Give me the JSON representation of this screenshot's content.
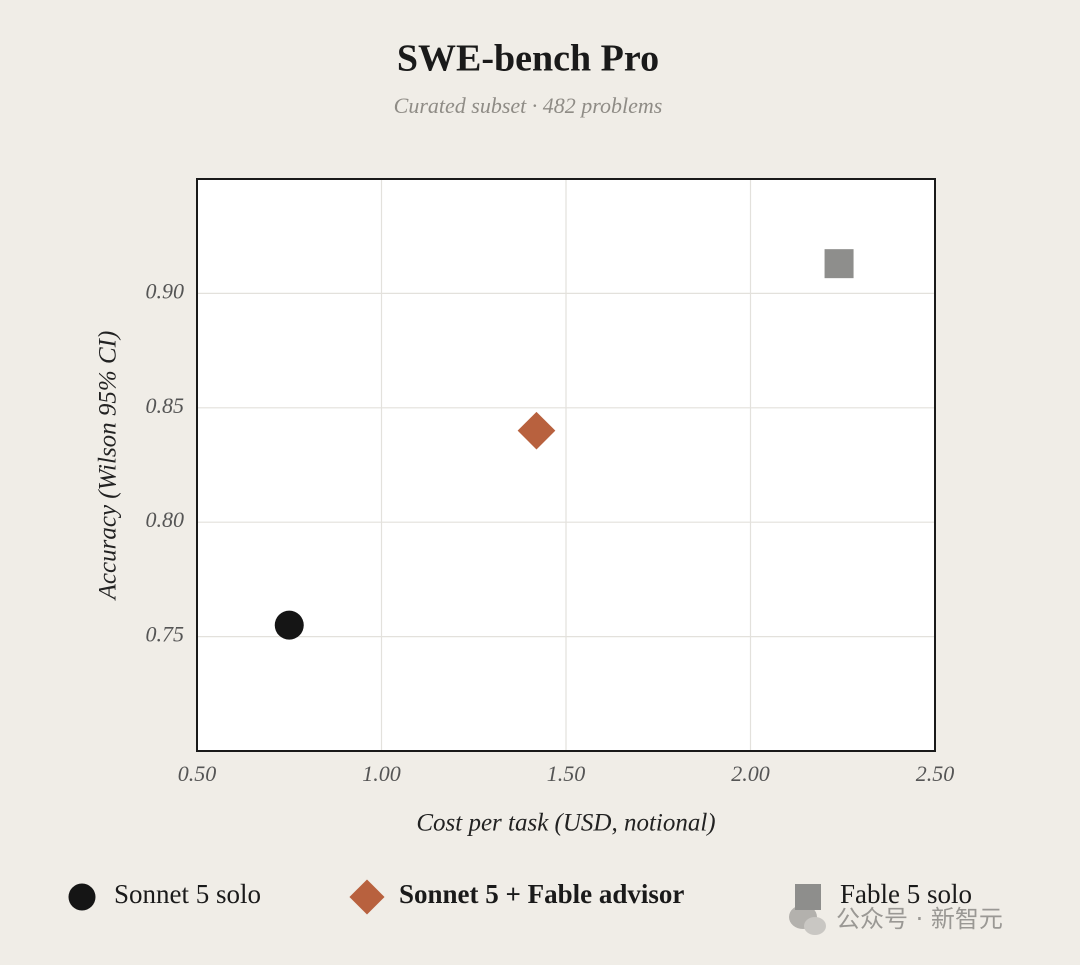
{
  "chart_data": {
    "type": "scatter",
    "title": "SWE-bench Pro",
    "subtitle": "Curated subset · 482 problems",
    "xlabel": "Cost per task (USD, notional)",
    "ylabel": "Accuracy (Wilson 95% CI)",
    "xlim": [
      0.5,
      2.5
    ],
    "ylim": [
      0.7,
      0.95
    ],
    "xticks": [
      {
        "value": 0.5,
        "label": "0.50"
      },
      {
        "value": 1.0,
        "label": "1.00"
      },
      {
        "value": 1.5,
        "label": "1.50"
      },
      {
        "value": 2.0,
        "label": "2.00"
      },
      {
        "value": 2.5,
        "label": "2.50"
      }
    ],
    "yticks": [
      0.75,
      {
        "value": 0.8,
        "label": "0.80"
      },
      0.85,
      {
        "value": 0.9,
        "label": "0.90"
      }
    ],
    "grid": true,
    "legend": "bottom",
    "series": [
      {
        "name": "Sonnet 5 solo",
        "color": "#151515",
        "marker": "circle",
        "x": [
          0.75
        ],
        "values": [
          0.755
        ]
      },
      {
        "name": "Sonnet 5 + Fable advisor",
        "color": "#b8613e",
        "marker": "diamond",
        "highlight": true,
        "x": [
          1.42
        ],
        "values": [
          0.84
        ]
      },
      {
        "name": "Fable 5 solo",
        "color": "#8e8e8c",
        "marker": "square",
        "x": [
          2.24
        ],
        "values": [
          0.913
        ]
      }
    ]
  },
  "watermark": "公众号 · 新智元"
}
